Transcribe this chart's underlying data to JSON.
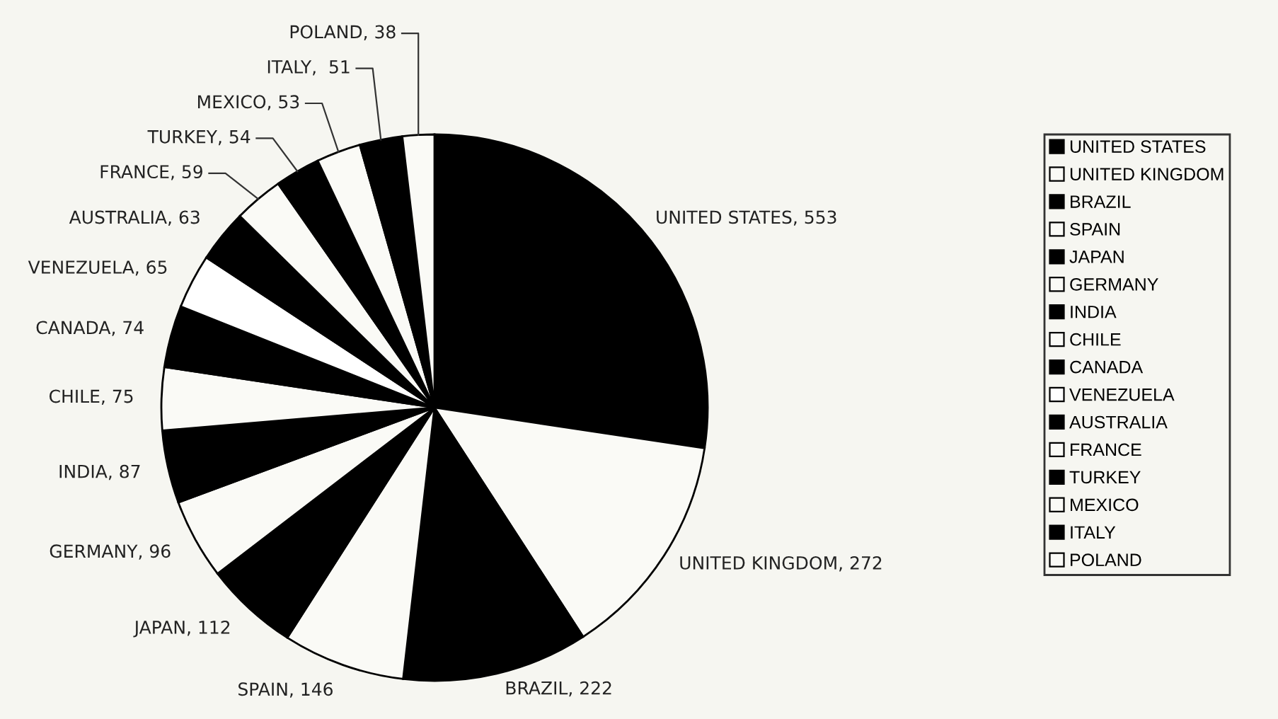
{
  "chart_data": {
    "type": "pie",
    "categories": [
      "UNITED STATES",
      "UNITED KINGDOM",
      "BRAZIL",
      "SPAIN",
      "JAPAN",
      "GERMANY",
      "INDIA",
      "CHILE",
      "CANADA",
      "VENEZUELA",
      "AUSTRALIA",
      "FRANCE",
      "TURKEY",
      "MEXICO",
      "ITALY",
      "POLAND"
    ],
    "values": [
      553,
      272,
      222,
      146,
      112,
      96,
      87,
      75,
      74,
      65,
      63,
      59,
      54,
      53,
      51,
      38
    ],
    "colors": [
      "#000000",
      "#fafaf6",
      "#000000",
      "#fafaf6",
      "#000000",
      "#fafaf6",
      "#000000",
      "#fafaf6",
      "#000000",
      "#ffffff",
      "#000000",
      "#fafaf6",
      "#000000",
      "#fafaf6",
      "#000000",
      "#fafaf6"
    ],
    "value_labels": [
      "UNITED STATES, 553",
      "UNITED KINGDOM, 272",
      "BRAZIL, 222",
      "SPAIN, 146",
      "JAPAN, 112",
      "GERMANY, 96",
      "INDIA, 87",
      "CHILE, 75",
      "CANADA, 74",
      "VENEZUELA, 65",
      "AUSTRALIA, 63",
      "FRANCE, 59",
      "TURKEY, 54",
      "MEXICO, 53",
      "ITALY,  51",
      "POLAND, 38"
    ],
    "legend": "right"
  }
}
